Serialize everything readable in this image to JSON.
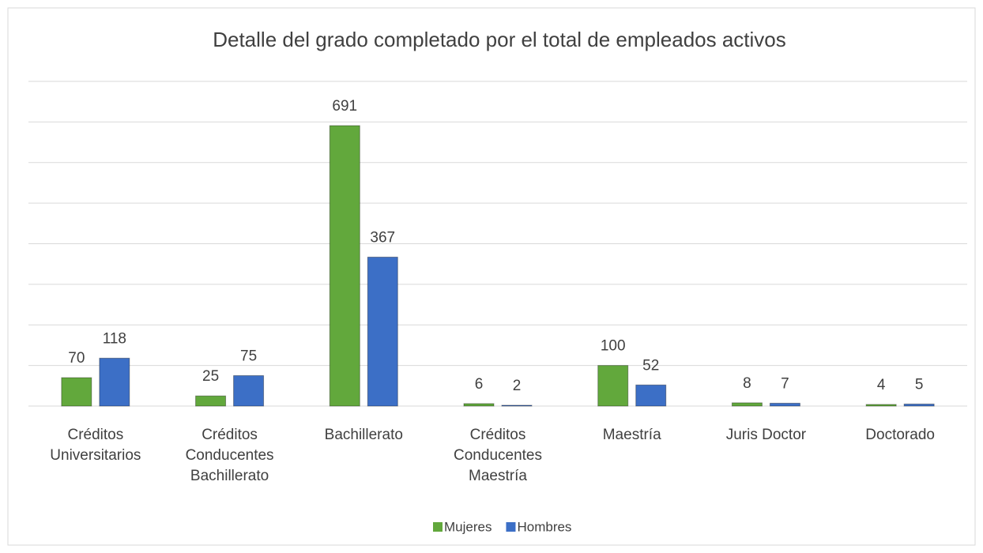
{
  "chart_data": {
    "type": "bar",
    "title": "Detalle del grado completado por el total de empleados activos",
    "categories": [
      "Créditos Universitarios",
      "Créditos Conducentes Bachillerato",
      "Bachillerato",
      "Créditos Conducentes Maestría",
      "Maestría",
      "Juris Doctor",
      "Doctorado"
    ],
    "series": [
      {
        "name": "Mujeres",
        "color": "#62a83c",
        "values": [
          70,
          25,
          691,
          6,
          100,
          8,
          4
        ]
      },
      {
        "name": "Hombres",
        "color": "#3c6fc6",
        "values": [
          118,
          75,
          367,
          2,
          52,
          7,
          5
        ]
      }
    ],
    "ylim": [
      0,
      800
    ],
    "yticks": [
      0,
      100,
      200,
      300,
      400,
      500,
      600,
      700,
      800
    ],
    "grid": true,
    "legend": "bottom"
  }
}
